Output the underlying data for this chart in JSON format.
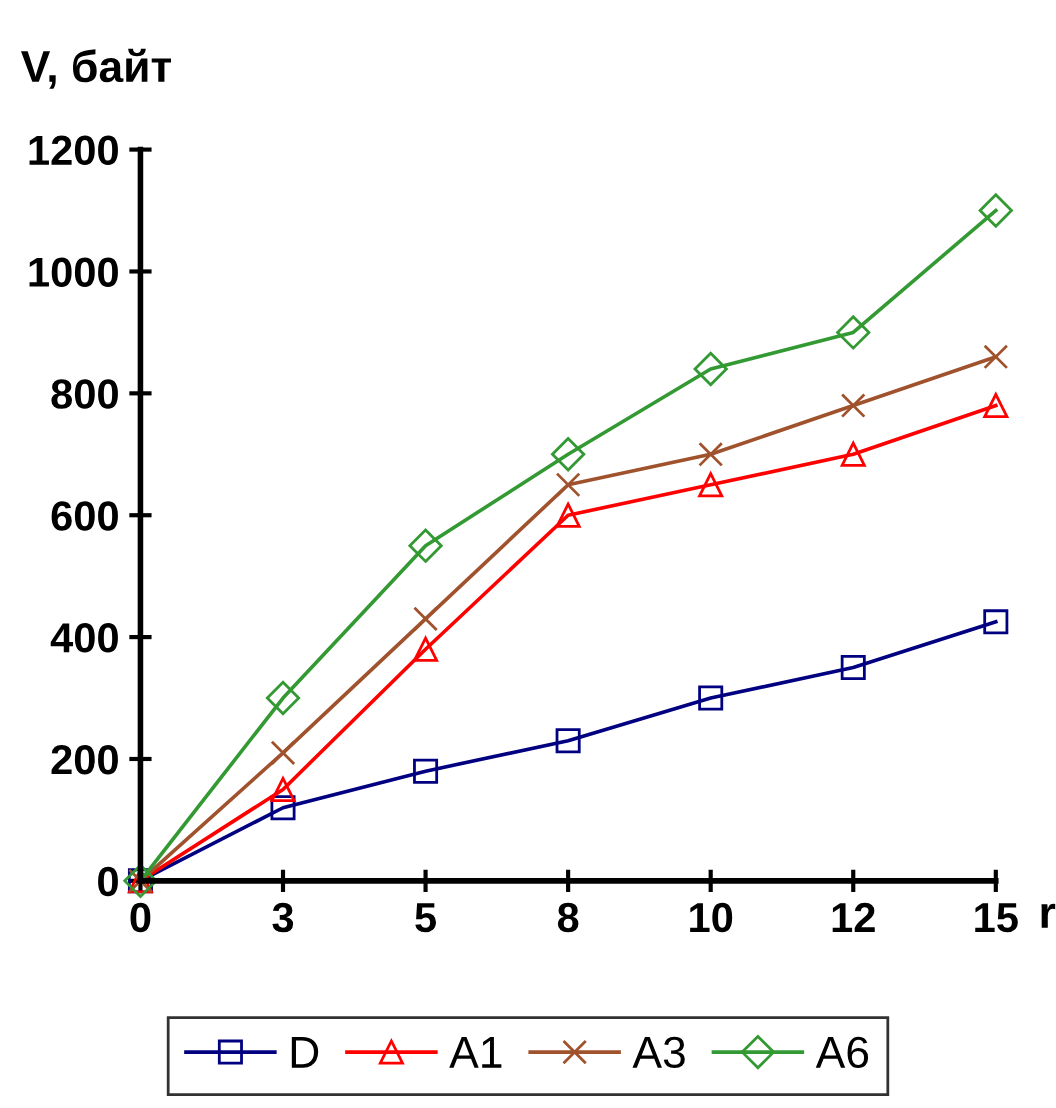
{
  "chart_data": {
    "type": "line",
    "ylabel": "V, байт",
    "xlabel": "r",
    "categories": [
      "0",
      "3",
      "5",
      "8",
      "10",
      "12",
      "15"
    ],
    "series": [
      {
        "name": "D",
        "color": "#000080",
        "marker": "square",
        "values": [
          0,
          120,
          180,
          230,
          300,
          350,
          425
        ]
      },
      {
        "name": "A1",
        "color": "#ff0000",
        "marker": "triangle",
        "values": [
          0,
          150,
          380,
          600,
          650,
          700,
          780
        ]
      },
      {
        "name": "A3",
        "color": "#a0522d",
        "marker": "cross",
        "values": [
          0,
          210,
          430,
          650,
          700,
          780,
          860
        ]
      },
      {
        "name": "A6",
        "color": "#339933",
        "marker": "diamond",
        "values": [
          0,
          300,
          550,
          700,
          840,
          900,
          1100
        ]
      }
    ],
    "ylim": [
      0,
      1200
    ],
    "yticks": [
      0,
      200,
      400,
      600,
      800,
      1000,
      1200
    ],
    "grid": false,
    "legend": "bottom",
    "line_style": "solid"
  }
}
